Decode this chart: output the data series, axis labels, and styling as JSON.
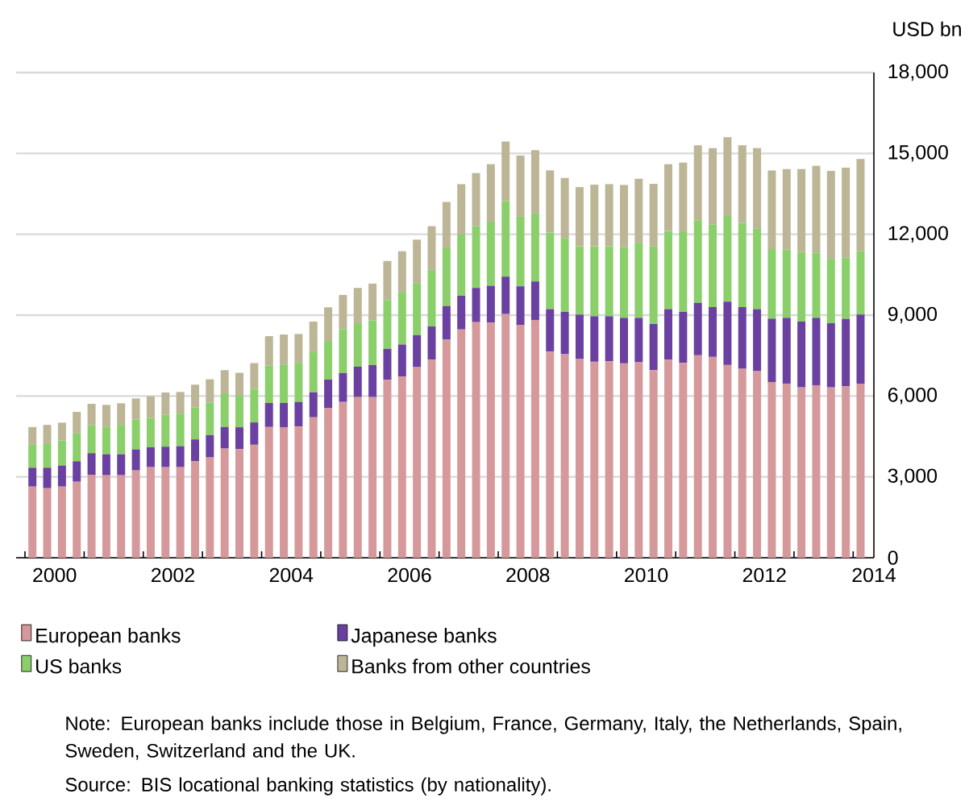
{
  "chart_data": {
    "type": "bar",
    "stacked": true,
    "ylabel": "USD bn",
    "x": [
      2000.125,
      2000.375,
      2000.625,
      2000.875,
      2001.125,
      2001.375,
      2001.625,
      2001.875,
      2002.125,
      2002.375,
      2002.625,
      2002.875,
      2003.125,
      2003.375,
      2003.625,
      2003.875,
      2004.125,
      2004.375,
      2004.625,
      2004.875,
      2005.125,
      2005.375,
      2005.625,
      2005.875,
      2006.125,
      2006.375,
      2006.625,
      2006.875,
      2007.125,
      2007.375,
      2007.625,
      2007.875,
      2008.125,
      2008.375,
      2008.625,
      2008.875,
      2009.125,
      2009.375,
      2009.625,
      2009.875,
      2010.125,
      2010.375,
      2010.625,
      2010.875,
      2011.125,
      2011.375,
      2011.625,
      2011.875,
      2012.125,
      2012.375,
      2012.625,
      2012.875,
      2013.125,
      2013.375,
      2013.625,
      2013.875,
      2014.125
    ],
    "xlim": [
      1999.85,
      2014.35
    ],
    "xticks": [
      {
        "value": 2000,
        "label": null
      },
      {
        "value": 2001,
        "label": null
      },
      {
        "value": 2002,
        "label": null
      },
      {
        "value": 2003,
        "label": null
      },
      {
        "value": 2004,
        "label": null
      },
      {
        "value": 2005,
        "label": null
      },
      {
        "value": 2006,
        "label": null
      },
      {
        "value": 2007,
        "label": null
      },
      {
        "value": 2008,
        "label": null
      },
      {
        "value": 2009,
        "label": null
      },
      {
        "value": 2010,
        "label": null
      },
      {
        "value": 2011,
        "label": null
      },
      {
        "value": 2012,
        "label": null
      },
      {
        "value": 2013,
        "label": null
      },
      {
        "value": 2014,
        "label": null
      },
      {
        "value": 2000.5,
        "label": "2000"
      },
      {
        "value": 2002.5,
        "label": "2002"
      },
      {
        "value": 2004.5,
        "label": "2004"
      },
      {
        "value": 2006.5,
        "label": "2006"
      },
      {
        "value": 2008.5,
        "label": "2008"
      },
      {
        "value": 2010.5,
        "label": "2010"
      },
      {
        "value": 2012.5,
        "label": "2012"
      },
      {
        "value": 2014.35,
        "label": "2014"
      }
    ],
    "ylim": [
      0,
      18000
    ],
    "yticks": [
      0,
      {
        "value": 3000,
        "label": "3,000"
      },
      {
        "value": 6000,
        "label": "6,000"
      },
      {
        "value": 9000,
        "label": "9,000"
      },
      {
        "value": 12000,
        "label": "12,000"
      },
      {
        "value": 15000,
        "label": "15,000"
      },
      {
        "value": 18000,
        "label": "18,000"
      }
    ],
    "grid": "y",
    "legend": "bottom",
    "series": [
      {
        "name": "European banks",
        "color": "#d6999b",
        "values": [
          2640,
          2580,
          2640,
          2820,
          3080,
          3060,
          3060,
          3240,
          3360,
          3360,
          3360,
          3580,
          3720,
          4050,
          4030,
          4190,
          4850,
          4830,
          4870,
          5210,
          5560,
          5780,
          5960,
          5960,
          6600,
          6720,
          7070,
          7350,
          8090,
          8470,
          8740,
          8720,
          9040,
          8640,
          8820,
          7650,
          7550,
          7370,
          7270,
          7290,
          7210,
          7250,
          6960,
          7350,
          7230,
          7510,
          7450,
          7150,
          7010,
          6920,
          6520,
          6460,
          6320,
          6400,
          6320,
          6360,
          6460
        ]
      },
      {
        "name": "Japanese banks",
        "color": "#6a41a0",
        "values": [
          700,
          760,
          780,
          760,
          800,
          780,
          780,
          780,
          740,
          760,
          780,
          810,
          830,
          800,
          810,
          830,
          890,
          910,
          910,
          930,
          1050,
          1070,
          1130,
          1190,
          1150,
          1190,
          1190,
          1230,
          1250,
          1250,
          1270,
          1370,
          1390,
          1430,
          1430,
          1570,
          1570,
          1650,
          1690,
          1670,
          1690,
          1650,
          1710,
          1870,
          1890,
          1950,
          1850,
          2350,
          2290,
          2300,
          2350,
          2440,
          2440,
          2500,
          2380,
          2500,
          2560
        ]
      },
      {
        "name": "US banks",
        "color": "#8bcf6b",
        "values": [
          850,
          910,
          930,
          1030,
          1030,
          1010,
          1090,
          1110,
          1090,
          1190,
          1210,
          1190,
          1210,
          1250,
          1170,
          1250,
          1390,
          1430,
          1450,
          1510,
          1430,
          1630,
          1610,
          1650,
          1810,
          1930,
          1930,
          2090,
          2170,
          2270,
          2290,
          2380,
          2800,
          2580,
          2520,
          2840,
          2740,
          2540,
          2600,
          2600,
          2620,
          2780,
          2880,
          2900,
          2960,
          3060,
          3060,
          3180,
          3120,
          3000,
          2580,
          2540,
          2580,
          2420,
          2390,
          2270,
          2350
        ]
      },
      {
        "name": "Banks from other countries",
        "color": "#bcb596",
        "values": [
          660,
          680,
          660,
          800,
          800,
          820,
          800,
          780,
          800,
          820,
          800,
          840,
          860,
          860,
          850,
          950,
          1090,
          1110,
          1070,
          1110,
          1250,
          1270,
          1310,
          1370,
          1450,
          1530,
          1610,
          1630,
          1690,
          1870,
          1970,
          2130,
          2210,
          2270,
          2350,
          2310,
          2230,
          2190,
          2280,
          2300,
          2310,
          2380,
          2320,
          2480,
          2580,
          2780,
          2840,
          2920,
          2880,
          2980,
          2920,
          2980,
          3080,
          3220,
          3260,
          3340,
          3420
        ]
      }
    ],
    "annotations": [
      "Note:  European banks include those in Belgium, France, Germany, Italy, the Netherlands, Spain, Sweden, Switzerland and the UK.",
      "Source: BIS locational banking statistics (by nationality)."
    ]
  }
}
